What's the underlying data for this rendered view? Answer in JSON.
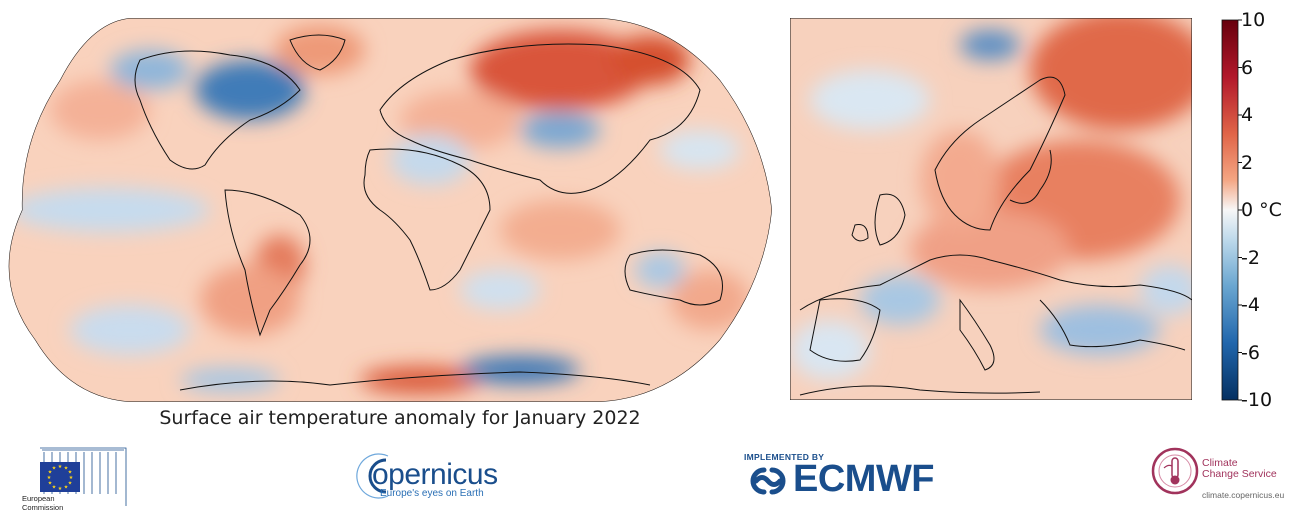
{
  "title": "Surface air temperature anomaly for January 2022",
  "colorbar": {
    "unit": "°C",
    "ticks": [
      {
        "label": "10",
        "value": 10
      },
      {
        "label": "6",
        "value": 6
      },
      {
        "label": "4",
        "value": 4
      },
      {
        "label": "2",
        "value": 2
      },
      {
        "label": "0 °C",
        "value": 0
      },
      {
        "label": "-2",
        "value": -2
      },
      {
        "label": "-4",
        "value": -4
      },
      {
        "label": "-6",
        "value": -6
      },
      {
        "label": "-10",
        "value": -10
      }
    ],
    "colors": {
      "max": "#67000d",
      "warm_strong": "#cb4425",
      "warm": "#f4a582",
      "neutral": "#f7f7f7",
      "cool": "#92c5de",
      "cool_strong": "#2c6fb0",
      "min": "#053061"
    }
  },
  "maps": [
    {
      "name": "global",
      "projection": "Robinson"
    },
    {
      "name": "europe",
      "projection": "regional"
    }
  ],
  "logos": {
    "european_commission": {
      "line1": "European",
      "line2": "Commission",
      "icon": "eu-flag-icon"
    },
    "copernicus": {
      "word": "opernicus",
      "initial": "C",
      "tagline": "Europe's eyes on Earth"
    },
    "ecmwf": {
      "implemented_by": "IMPLEMENTED BY",
      "word": "ECMWF"
    },
    "c3s": {
      "line1": "Climate",
      "line2": "Change Service",
      "url": "climate.copernicus.eu"
    }
  }
}
